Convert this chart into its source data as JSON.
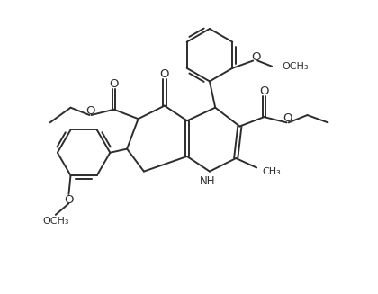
{
  "background_color": "#ffffff",
  "line_color": "#2d2d2d",
  "line_width": 1.4,
  "font_size": 8.5,
  "fig_width": 4.2,
  "fig_height": 3.27,
  "dpi": 100,
  "xlim": [
    0,
    100
  ],
  "ylim": [
    0,
    78
  ]
}
